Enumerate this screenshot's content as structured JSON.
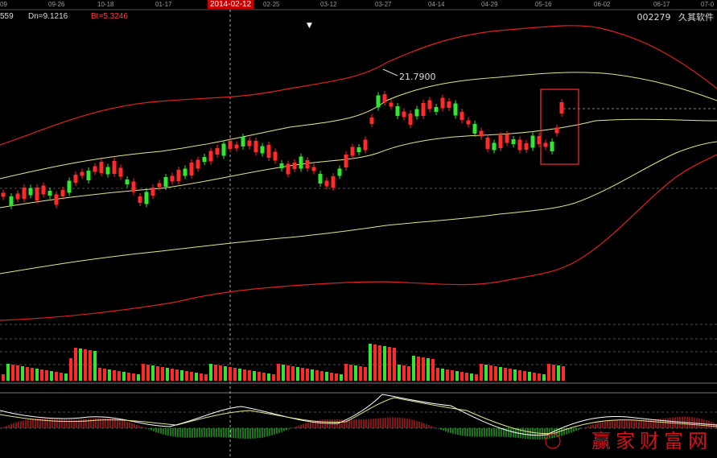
{
  "dates": {
    "labels": [
      "09",
      "09-26",
      "10-18",
      "01-17",
      "2014-02-12",
      "02-25",
      "03-12",
      "03-27",
      "04-14",
      "04-29",
      "05-16",
      "06-02",
      "06-17",
      "07-0"
    ],
    "highlight_index": 4
  },
  "legend": {
    "value_partial": "559",
    "dn": "Dn=9.1216",
    "bt": "Bt=5.3246"
  },
  "stock": {
    "code": "002279",
    "name": "久其软件"
  },
  "chart": {
    "peak_label": "21.7900"
  },
  "watermark": "赢家财富网",
  "colors": {
    "background": "#000000",
    "up": "#ff2a2a",
    "down": "#32e632",
    "boll_mid": "#e6e68c",
    "envelope": "#ff2020",
    "label_red": "#ff3b3b",
    "highlight_box": "#ff3030"
  },
  "icons": {
    "cursor_marker": "down-triangle-icon",
    "cursor_char": "▼"
  }
}
